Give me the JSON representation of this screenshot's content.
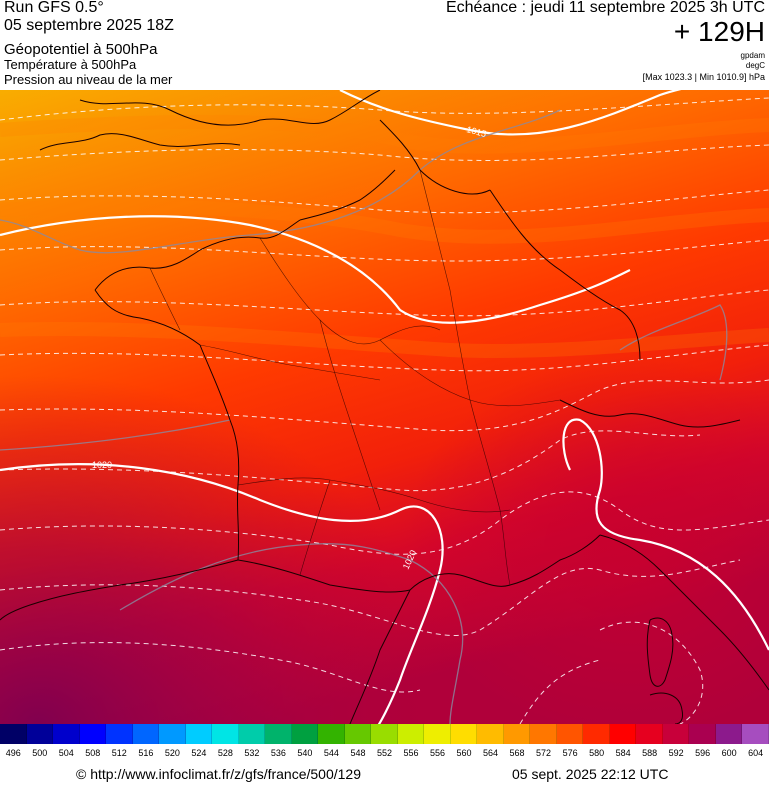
{
  "header": {
    "run": "Run GFS 0.5°",
    "run_date": "05 septembre 2025 18Z",
    "field_geopotential": "Géopotentiel à 500hPa",
    "field_temperature": "Température à 500hPa",
    "field_pressure": "Pression au niveau de la mer",
    "echeance": "Echéance : jeudi 11 septembre 2025 3h UTC",
    "lead_time": "+ 129H",
    "unit_1": "gpdam",
    "unit_2": "degC",
    "max_min": "[Max 1023.3 | Min 1010.9] hPa"
  },
  "map": {
    "isobar_labels": [
      "1015",
      "1020",
      "1020"
    ],
    "colors": {
      "north": "#f9a800",
      "center": "#ff3a00",
      "south": "#c40030",
      "southwest": "#8e0048"
    }
  },
  "scale": {
    "labels": [
      "496",
      "500",
      "504",
      "508",
      "512",
      "516",
      "520",
      "524",
      "528",
      "532",
      "536",
      "540",
      "544",
      "548",
      "552",
      "556",
      "556",
      "560",
      "564",
      "568",
      "572",
      "576",
      "580",
      "584",
      "588",
      "592",
      "596",
      "600",
      "604"
    ],
    "colors": [
      "#000066",
      "#000099",
      "#0000cc",
      "#0000ff",
      "#0033ff",
      "#0066ff",
      "#0099ff",
      "#00ccff",
      "#00e5e5",
      "#00ccaa",
      "#00b36b",
      "#00a040",
      "#33b300",
      "#66c800",
      "#99dd00",
      "#ccee00",
      "#eeee00",
      "#ffdd00",
      "#ffbb00",
      "#ff9900",
      "#ff7700",
      "#ff5500",
      "#ff2a00",
      "#ff0000",
      "#e6001f",
      "#c8003a",
      "#aa0050",
      "#8c1a8c",
      "#a64dbf"
    ]
  },
  "footer": {
    "credit": "© http://www.infoclimat.fr/z/gfs/france/500/129",
    "timestamp": "05 sept. 2025 22:12 UTC"
  }
}
